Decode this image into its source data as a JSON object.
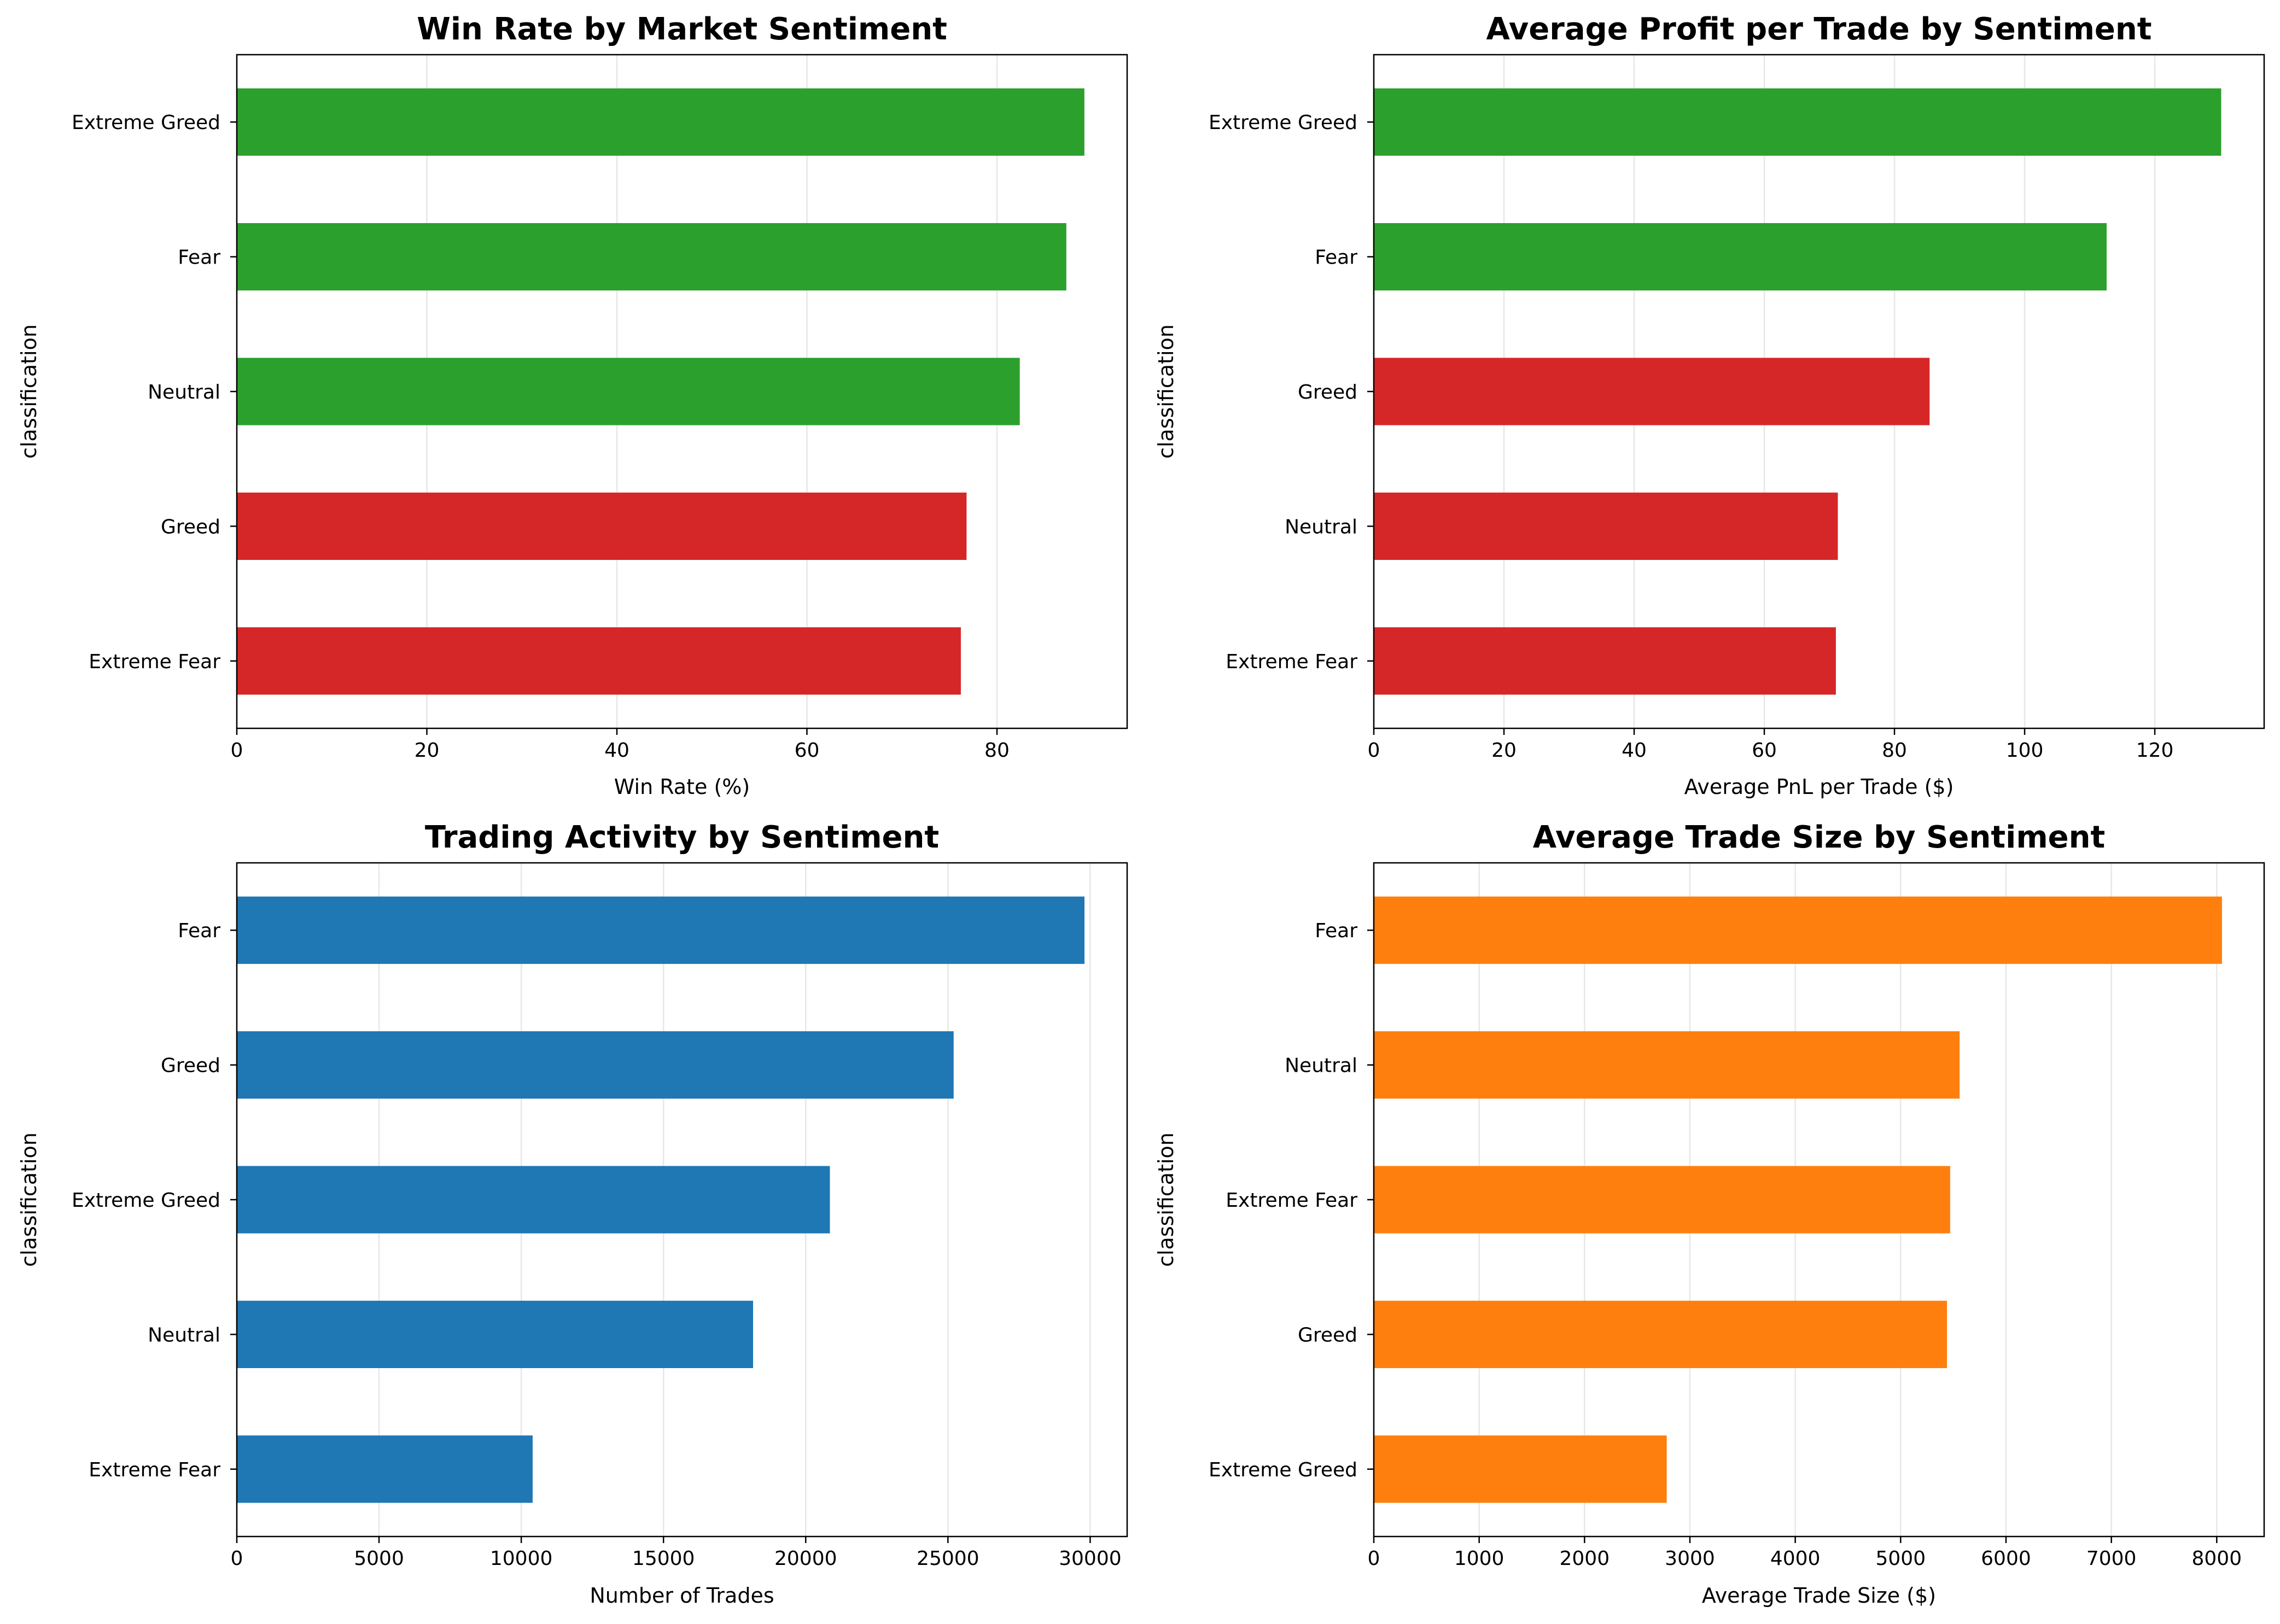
{
  "chart_data": [
    {
      "type": "bar",
      "orientation": "horizontal",
      "title": "Win Rate by Market Sentiment",
      "xlabel": "Win Rate (%)",
      "ylabel": "classification",
      "categories": [
        "Extreme Greed",
        "Fear",
        "Neutral",
        "Greed",
        "Extreme Fear"
      ],
      "values": [
        89.2,
        87.3,
        82.4,
        76.8,
        76.2
      ],
      "bar_colors": [
        "#2ca02c",
        "#2ca02c",
        "#2ca02c",
        "#d62728",
        "#d62728"
      ],
      "xlim": [
        0,
        93.7
      ],
      "xticks": [
        0,
        20,
        40,
        60,
        80
      ],
      "xtick_labels": [
        "0",
        "20",
        "40",
        "60",
        "80"
      ],
      "grid": "x"
    },
    {
      "type": "bar",
      "orientation": "horizontal",
      "title": "Average Profit per Trade by Sentiment",
      "xlabel": "Average PnL per Trade ($)",
      "ylabel": "classification",
      "categories": [
        "Extreme Greed",
        "Fear",
        "Greed",
        "Neutral",
        "Extreme Fear"
      ],
      "values": [
        130.2,
        112.6,
        85.4,
        71.3,
        71.0
      ],
      "bar_colors": [
        "#2ca02c",
        "#2ca02c",
        "#d62728",
        "#d62728",
        "#d62728"
      ],
      "xlim": [
        0,
        136.8
      ],
      "xticks": [
        0,
        20,
        40,
        60,
        80,
        100,
        120
      ],
      "xtick_labels": [
        "0",
        "20",
        "40",
        "60",
        "80",
        "100",
        "120"
      ],
      "grid": "x"
    },
    {
      "type": "bar",
      "orientation": "horizontal",
      "title": "Trading Activity by Sentiment",
      "xlabel": "Number of Trades",
      "ylabel": "classification",
      "categories": [
        "Fear",
        "Greed",
        "Extreme Greed",
        "Neutral",
        "Extreme Fear"
      ],
      "values": [
        29800,
        25200,
        20850,
        18150,
        10400
      ],
      "bar_colors": [
        "#1f77b4",
        "#1f77b4",
        "#1f77b4",
        "#1f77b4",
        "#1f77b4"
      ],
      "xlim": [
        0,
        31300
      ],
      "xticks": [
        0,
        5000,
        10000,
        15000,
        20000,
        25000,
        30000
      ],
      "xtick_labels": [
        "0",
        "5000",
        "10000",
        "15000",
        "20000",
        "25000",
        "30000"
      ],
      "grid": "x"
    },
    {
      "type": "bar",
      "orientation": "horizontal",
      "title": "Average Trade Size by Sentiment",
      "xlabel": "Average Trade Size ($)",
      "ylabel": "classification",
      "categories": [
        "Fear",
        "Neutral",
        "Extreme Fear",
        "Greed",
        "Extreme Greed"
      ],
      "values": [
        8050,
        5560,
        5470,
        5440,
        2780
      ],
      "bar_colors": [
        "#ff7f0e",
        "#ff7f0e",
        "#ff7f0e",
        "#ff7f0e",
        "#ff7f0e"
      ],
      "xlim": [
        0,
        8450
      ],
      "xticks": [
        0,
        1000,
        2000,
        3000,
        4000,
        5000,
        6000,
        7000,
        8000
      ],
      "xtick_labels": [
        "0",
        "1000",
        "2000",
        "3000",
        "4000",
        "5000",
        "6000",
        "7000",
        "8000"
      ],
      "grid": "x"
    }
  ]
}
